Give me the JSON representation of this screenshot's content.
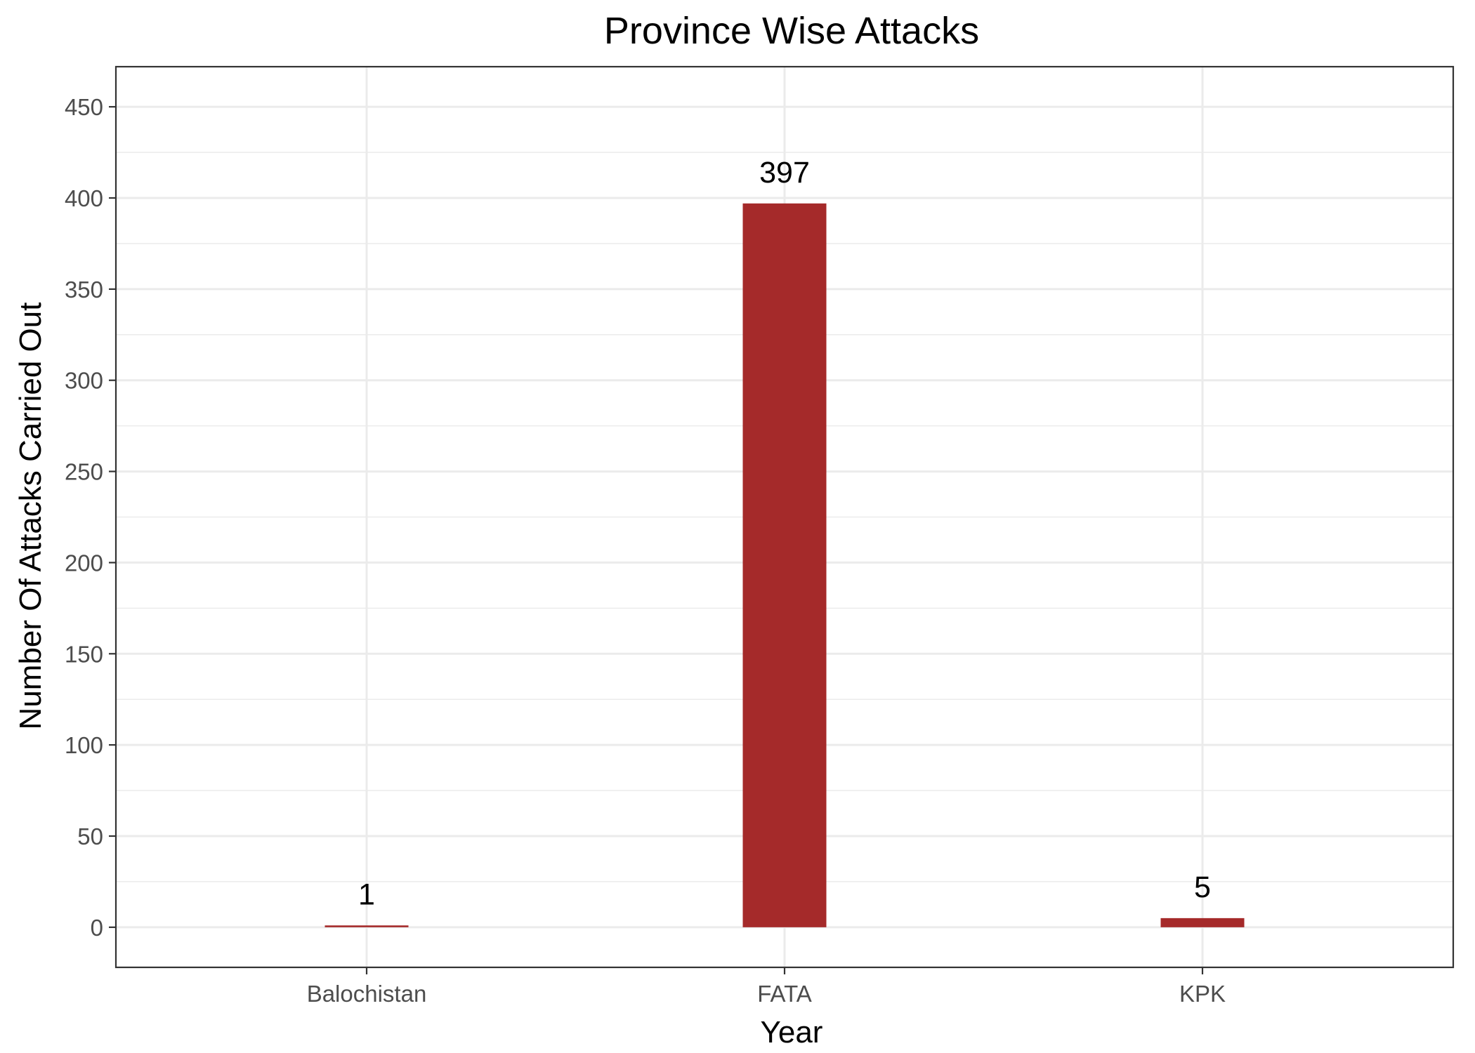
{
  "chart_data": {
    "type": "bar",
    "title": "Province Wise Attacks",
    "xlabel": "Year",
    "ylabel": "Number Of Attacks Carried Out",
    "categories": [
      "Balochistan",
      "FATA",
      "KPK"
    ],
    "values": [
      1,
      397,
      5
    ],
    "data_labels": [
      "1",
      "397",
      "5"
    ],
    "ylim": [
      -22,
      472
    ],
    "yticks": [
      0,
      50,
      100,
      150,
      200,
      250,
      300,
      350,
      400,
      450
    ],
    "grid": true,
    "legend": "none",
    "colors": {
      "bar": "#a52a2a",
      "grid": "#ebebeb",
      "panel_border": "#333333",
      "tick_text": "#4d4d4d"
    }
  }
}
